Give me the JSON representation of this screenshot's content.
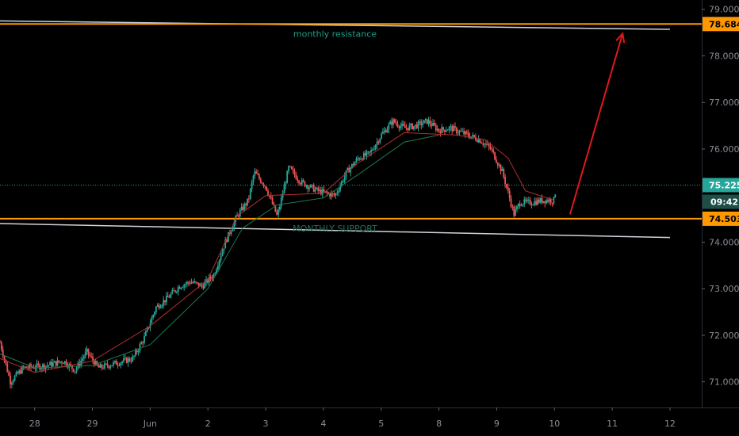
{
  "chart_data": {
    "type": "candlestick",
    "y_axis": {
      "range": [
        70.45,
        79.2
      ],
      "ticks": [
        {
          "v": 79.0,
          "label": "79.000"
        },
        {
          "v": 78.0,
          "label": "78.000"
        },
        {
          "v": 77.0,
          "label": "77.000"
        },
        {
          "v": 76.0,
          "label": "76.000"
        },
        {
          "v": 74.0,
          "label": "74.000"
        },
        {
          "v": 73.0,
          "label": "73.000"
        },
        {
          "v": 72.0,
          "label": "72.000"
        },
        {
          "v": 71.0,
          "label": "71.000"
        }
      ]
    },
    "x_axis": {
      "range": [
        -0.6,
        11.55
      ],
      "ticks": [
        {
          "v": 0,
          "label": "28"
        },
        {
          "v": 1,
          "label": "29"
        },
        {
          "v": 2,
          "label": "Jun"
        },
        {
          "v": 3,
          "label": "2"
        },
        {
          "v": 4,
          "label": "3"
        },
        {
          "v": 5,
          "label": "4"
        },
        {
          "v": 6,
          "label": "5"
        },
        {
          "v": 7,
          "label": "8"
        },
        {
          "v": 8,
          "label": "9"
        },
        {
          "v": 9,
          "label": "10"
        },
        {
          "v": 10,
          "label": "11"
        },
        {
          "v": 11,
          "label": "12"
        }
      ]
    },
    "price_path": [
      [
        -0.6,
        71.85
      ],
      [
        -0.42,
        71.0
      ],
      [
        -0.2,
        71.3
      ],
      [
        0.2,
        71.35
      ],
      [
        0.5,
        71.45
      ],
      [
        0.7,
        71.25
      ],
      [
        0.9,
        71.65
      ],
      [
        1.1,
        71.3
      ],
      [
        1.4,
        71.4
      ],
      [
        1.7,
        71.5
      ],
      [
        1.9,
        71.95
      ],
      [
        2.1,
        72.6
      ],
      [
        2.3,
        72.8
      ],
      [
        2.5,
        73.05
      ],
      [
        2.7,
        73.15
      ],
      [
        2.9,
        73.05
      ],
      [
        3.1,
        73.3
      ],
      [
        3.3,
        74.0
      ],
      [
        3.5,
        74.55
      ],
      [
        3.7,
        74.9
      ],
      [
        3.8,
        75.5
      ],
      [
        4.0,
        75.2
      ],
      [
        4.2,
        74.55
      ],
      [
        4.4,
        75.6
      ],
      [
        4.6,
        75.3
      ],
      [
        4.9,
        75.1
      ],
      [
        5.2,
        75.0
      ],
      [
        5.4,
        75.5
      ],
      [
        5.6,
        75.8
      ],
      [
        5.8,
        75.9
      ],
      [
        6.0,
        76.3
      ],
      [
        6.2,
        76.6
      ],
      [
        6.4,
        76.45
      ],
      [
        6.6,
        76.5
      ],
      [
        6.8,
        76.6
      ],
      [
        7.0,
        76.4
      ],
      [
        7.2,
        76.45
      ],
      [
        7.5,
        76.3
      ],
      [
        7.7,
        76.2
      ],
      [
        7.9,
        76.0
      ],
      [
        8.1,
        75.5
      ],
      [
        8.3,
        74.6
      ],
      [
        8.4,
        74.85
      ],
      [
        8.6,
        74.85
      ],
      [
        8.8,
        74.9
      ],
      [
        9.0,
        74.9
      ],
      [
        9.02,
        75.15
      ]
    ],
    "moving_average_green": [
      [
        -0.6,
        71.6
      ],
      [
        0.0,
        71.3
      ],
      [
        1.0,
        71.35
      ],
      [
        2.0,
        71.8
      ],
      [
        3.0,
        73.0
      ],
      [
        3.6,
        74.3
      ],
      [
        4.2,
        74.8
      ],
      [
        5.0,
        74.95
      ],
      [
        5.6,
        75.45
      ],
      [
        6.4,
        76.15
      ],
      [
        7.0,
        76.3
      ]
    ],
    "moving_average_red": [
      [
        -0.6,
        71.5
      ],
      [
        0.0,
        71.2
      ],
      [
        1.0,
        71.45
      ],
      [
        2.0,
        72.2
      ],
      [
        3.0,
        73.2
      ],
      [
        3.5,
        74.55
      ],
      [
        4.0,
        75.0
      ],
      [
        5.0,
        75.05
      ],
      [
        5.6,
        75.7
      ],
      [
        6.4,
        76.35
      ],
      [
        7.3,
        76.3
      ],
      [
        7.8,
        76.2
      ],
      [
        8.2,
        75.8
      ],
      [
        8.5,
        75.1
      ],
      [
        9.0,
        74.9
      ]
    ],
    "annotations": {
      "resistance": {
        "value": 78.684,
        "label": "monthly resistance"
      },
      "support": {
        "value": 74.503,
        "label": "MONTHLY SUPPORT"
      },
      "white_upper": [
        [
          -0.6,
          78.75
        ],
        [
          11.0,
          78.57
        ]
      ],
      "white_lower": [
        [
          -0.6,
          74.4
        ],
        [
          11.0,
          74.1
        ]
      ],
      "arrow": {
        "from": [
          9.27,
          74.6
        ],
        "to": [
          10.18,
          78.48
        ]
      }
    },
    "price_tags": [
      {
        "value": 78.684,
        "label": "78.684",
        "color": "#ff9800",
        "text_color": "#000000"
      },
      {
        "value": 75.225,
        "label": "75.225",
        "color": "#26a69a",
        "text_color": "#ffffff"
      },
      {
        "value": 74.503,
        "label": "74.503",
        "color": "#ff9800",
        "text_color": "#000000"
      }
    ],
    "countdown": "09:42",
    "last_price": 75.225,
    "colors": {
      "background": "#000000",
      "up": "#26a69a",
      "down": "#ef5350",
      "orange": "#ff9800",
      "arrow": "#e0181e",
      "white_line": "#d1d4dc",
      "axis_text": "#8a8d96",
      "resistance_text": "#1b9d84",
      "support_text": "#1e6f5c",
      "ma_green": "#1f7a4c",
      "ma_red": "#b03030"
    }
  }
}
